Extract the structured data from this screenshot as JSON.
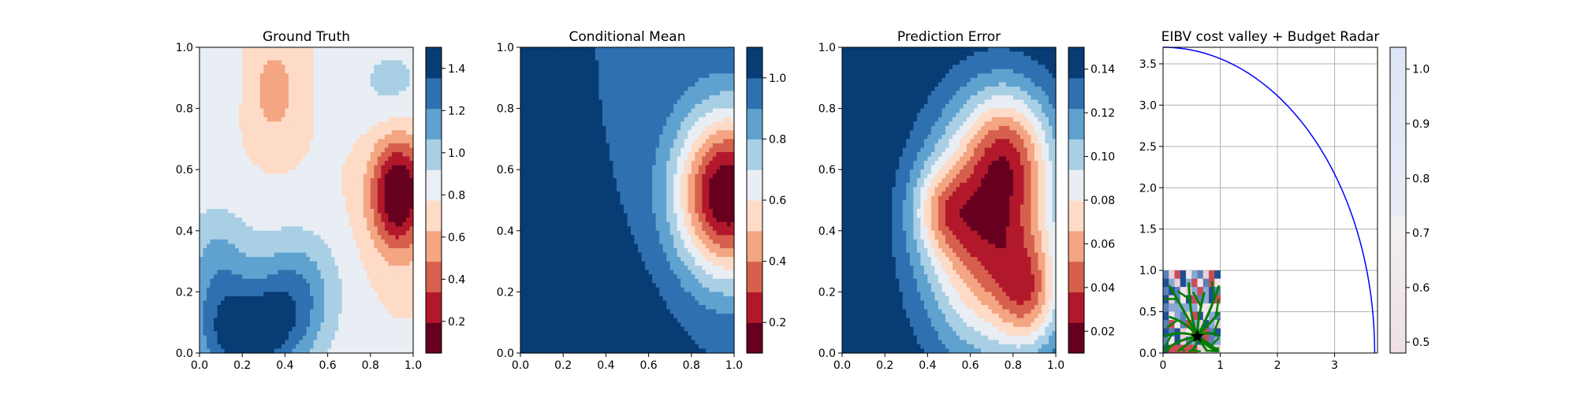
{
  "chart_data": [
    {
      "type": "heatmap",
      "title": "Ground Truth",
      "xlim": [
        0,
        1
      ],
      "ylim": [
        0,
        1
      ],
      "xticks": [
        "0.0",
        "0.2",
        "0.4",
        "0.6",
        "0.8",
        "1.0"
      ],
      "yticks": [
        "0.0",
        "0.2",
        "0.4",
        "0.6",
        "0.8",
        "1.0"
      ],
      "colormap": "RdBu",
      "colorbar": {
        "range": [
          0.05,
          1.5
        ],
        "ticks": [
          "0.2",
          "0.4",
          "0.6",
          "0.8",
          "1.0",
          "1.2",
          "1.4"
        ]
      },
      "field": {
        "base": 0.78,
        "blobs": [
          {
            "x": 0.93,
            "y": 0.52,
            "sx": 0.09,
            "sy": 0.13,
            "a": -0.8
          },
          {
            "x": 0.22,
            "y": 0.05,
            "sx": 0.17,
            "sy": 0.12,
            "a": 0.65
          },
          {
            "x": 0.45,
            "y": 0.2,
            "sx": 0.14,
            "sy": 0.14,
            "a": 0.42
          },
          {
            "x": 0.08,
            "y": 0.28,
            "sx": 0.12,
            "sy": 0.15,
            "a": 0.32
          },
          {
            "x": 0.35,
            "y": 0.86,
            "sx": 0.08,
            "sy": 0.12,
            "a": -0.22
          },
          {
            "x": 0.9,
            "y": 0.88,
            "sx": 0.15,
            "sy": 0.12,
            "a": 0.18
          },
          {
            "x": 0.05,
            "y": 0.88,
            "sx": 0.08,
            "sy": 0.1,
            "a": 0.14
          }
        ]
      }
    },
    {
      "type": "heatmap",
      "title": "Conditional Mean",
      "xlim": [
        0,
        1
      ],
      "ylim": [
        0,
        1
      ],
      "xticks": [
        "0.0",
        "0.2",
        "0.4",
        "0.6",
        "0.8",
        "1.0"
      ],
      "yticks": [
        "0.0",
        "0.2",
        "0.4",
        "0.6",
        "0.8",
        "1.0"
      ],
      "colormap": "RdBu",
      "colorbar": {
        "range": [
          0.1,
          1.1
        ],
        "ticks": [
          "0.2",
          "0.4",
          "0.6",
          "0.8",
          "1.0"
        ]
      },
      "field": {
        "base": 1.0,
        "blobs": [
          {
            "x": 0.97,
            "y": 0.52,
            "sx": 0.17,
            "sy": 0.19,
            "a": -0.92
          },
          {
            "x": 0.3,
            "y": 0.0,
            "sx": 0.32,
            "sy": 0.26,
            "a": 0.09
          }
        ]
      }
    },
    {
      "type": "heatmap",
      "title": "Prediction Error",
      "xlim": [
        0,
        1
      ],
      "ylim": [
        0,
        1
      ],
      "xticks": [
        "0.0",
        "0.2",
        "0.4",
        "0.6",
        "0.8",
        "1.0"
      ],
      "yticks": [
        "0.0",
        "0.2",
        "0.4",
        "0.6",
        "0.8",
        "1.0"
      ],
      "colormap": "RdBu",
      "colorbar": {
        "range": [
          0.01,
          0.15
        ],
        "ticks": [
          "0.02",
          "0.04",
          "0.06",
          "0.08",
          "0.10",
          "0.12",
          "0.14"
        ]
      },
      "field": {
        "base": 0.15,
        "blobs": [
          {
            "x": 0.7,
            "y": 0.4,
            "sx": 0.22,
            "sy": 0.27,
            "a": -0.12
          },
          {
            "x": 0.78,
            "y": 0.68,
            "sx": 0.14,
            "sy": 0.14,
            "a": -0.05
          },
          {
            "x": 0.47,
            "y": 0.47,
            "sx": 0.1,
            "sy": 0.1,
            "a": -0.04
          },
          {
            "x": 0.88,
            "y": 0.18,
            "sx": 0.1,
            "sy": 0.12,
            "a": -0.05
          }
        ]
      }
    },
    {
      "type": "line",
      "title": "EIBV cost valley + Budget Radar",
      "xlim": [
        0,
        3.75
      ],
      "ylim": [
        0,
        3.7
      ],
      "xticks": [
        "0",
        "1",
        "2",
        "3"
      ],
      "yticks": [
        "0.0",
        "0.5",
        "1.0",
        "1.5",
        "2.0",
        "2.5",
        "3.0",
        "3.5"
      ],
      "grid": true,
      "series": [
        {
          "kind": "arc",
          "radius": 3.7,
          "center": [
            0,
            0
          ],
          "color": "#0000ff"
        }
      ],
      "inset": {
        "extent": [
          0,
          1,
          0,
          1
        ],
        "start": [
          0.6,
          0.2
        ],
        "marker": "star",
        "tree_color": "#008000",
        "branch_count": 14
      },
      "colorbar": {
        "range": [
          0.48,
          1.04
        ],
        "ticks": [
          "0.5",
          "0.6",
          "0.7",
          "0.8",
          "0.9",
          "1.0"
        ]
      }
    }
  ]
}
